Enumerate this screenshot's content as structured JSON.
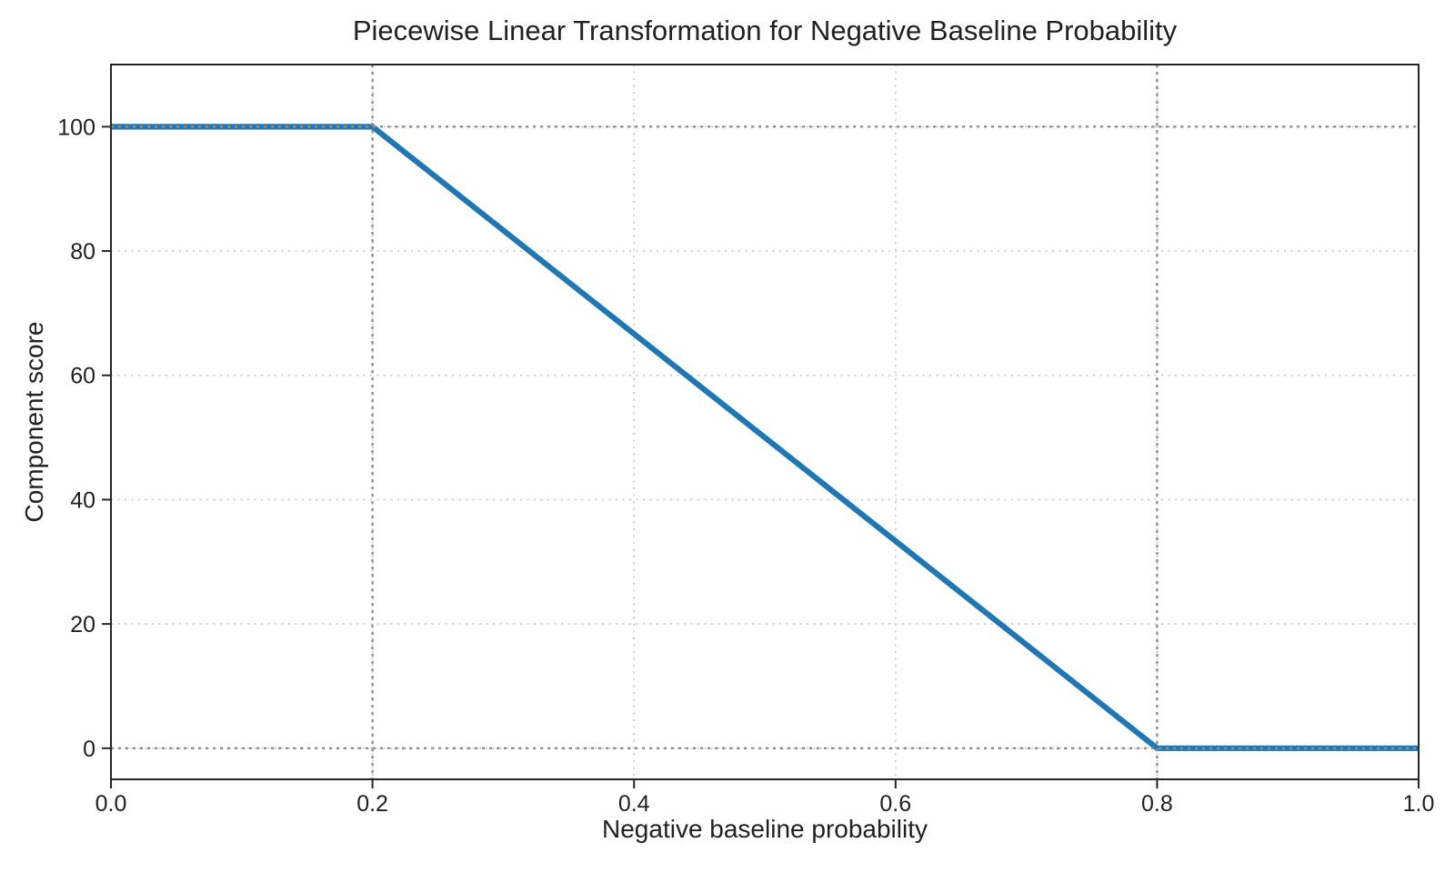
{
  "figure": {
    "background": "#ffffff"
  },
  "chart_data": {
    "type": "line",
    "title": "Piecewise Linear Transformation for Negative Baseline Probability",
    "xlabel": "Negative baseline probability",
    "ylabel": "Component score",
    "xlim": [
      0.0,
      1.0
    ],
    "ylim": [
      -5,
      110
    ],
    "x_ticks": {
      "values": [
        0.0,
        0.2,
        0.4,
        0.6,
        0.8,
        1.0
      ],
      "labels": [
        "0.0",
        "0.2",
        "0.4",
        "0.6",
        "0.8",
        "1.0"
      ]
    },
    "y_ticks": {
      "values": [
        0,
        20,
        40,
        60,
        80,
        100
      ],
      "labels": [
        "0",
        "20",
        "40",
        "60",
        "80",
        "100"
      ]
    },
    "grid": {
      "on": true,
      "linestyle": "dotted",
      "color": "#c9c9c9",
      "x_lines": [
        0.2,
        0.4,
        0.6,
        0.8
      ],
      "y_lines": [
        0,
        20,
        40,
        60,
        80,
        100
      ]
    },
    "reference_lines": {
      "linestyle": "dotted",
      "color": "#8f8f8f",
      "vertical_x": [
        0.2,
        0.8
      ],
      "horizontal_y": [
        0,
        100
      ]
    },
    "series": [
      {
        "name": "piecewise-transformation",
        "color": "#1f77b4",
        "x": [
          0.0,
          0.2,
          0.8,
          1.0
        ],
        "y": [
          100,
          100,
          0,
          0
        ]
      }
    ],
    "axis_color": "#262626",
    "text_color": "#202124",
    "legend": null
  }
}
